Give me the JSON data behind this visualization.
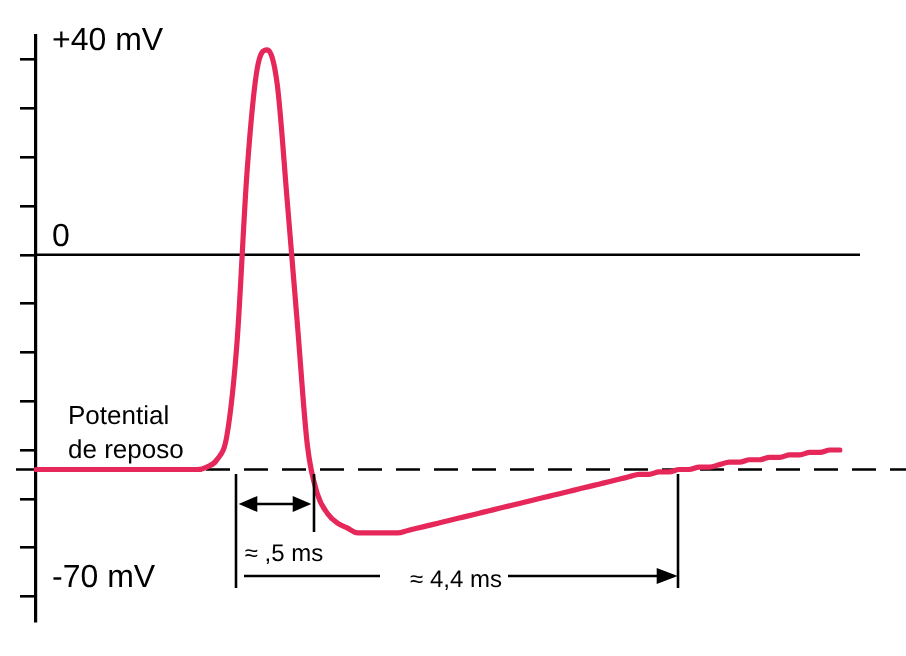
{
  "chart_data": {
    "type": "line",
    "categories": [
      null,
      null,
      null,
      null,
      null,
      null,
      null,
      null,
      null,
      null,
      null,
      null,
      null,
      null,
      null,
      null,
      null,
      null,
      null,
      null,
      null,
      null,
      null,
      null,
      null,
      null,
      null,
      null,
      null,
      null,
      null,
      null,
      null,
      null,
      null,
      null,
      null,
      null,
      null,
      null,
      null,
      null,
      null,
      null,
      null,
      null,
      null,
      null,
      null,
      null,
      null,
      null,
      null,
      null,
      null,
      null,
      null,
      null,
      null,
      null,
      null,
      null,
      null,
      null,
      null,
      null,
      null,
      null,
      null,
      null,
      null,
      null,
      null,
      null,
      null,
      null,
      null,
      null,
      null,
      null,
      null
    ],
    "series": [
      {
        "color": "#e6275a",
        "values": [
          -44,
          -44,
          -44,
          -44,
          -44,
          -44,
          -44,
          -44,
          -44,
          -44,
          -44,
          -44,
          -44,
          -44,
          -44,
          -44,
          -44,
          -43.5,
          -42,
          -37,
          -18,
          17,
          38,
          42,
          35,
          11,
          -14,
          -39,
          -49,
          -53,
          -55,
          -56,
          -57,
          -57,
          -57,
          -57,
          -57,
          -56.5,
          -56,
          -55.5,
          -55,
          -54.5,
          -54,
          -53.5,
          -53,
          -52.5,
          -52,
          -51.5,
          -51,
          -50.5,
          -50,
          -49.5,
          -49,
          -48.5,
          -48,
          -47.5,
          -47,
          -46.5,
          -46,
          -45.5,
          -45,
          -45,
          -44.5,
          -44.5,
          -44,
          -44,
          -43.5,
          -43.5,
          -43,
          -42.5,
          -42.5,
          -42,
          -42,
          -41.5,
          -41.5,
          -41,
          -41,
          -40.5,
          -40.5,
          -40,
          -40
        ]
      }
    ],
    "ylim": [
      -75,
      45
    ],
    "yticks": [
      {
        "value": -70,
        "label": "-70 mV"
      },
      {
        "value": -60,
        "label": null
      },
      {
        "value": -50,
        "label": null
      },
      {
        "value": -40,
        "label": null
      },
      {
        "value": -30,
        "label": null
      },
      {
        "value": -20,
        "label": null
      },
      {
        "value": -10,
        "label": null
      },
      {
        "value": 0,
        "label": "0"
      },
      {
        "value": 10,
        "label": null
      },
      {
        "value": 20,
        "label": null
      },
      {
        "value": 30,
        "label": null
      },
      {
        "value": 40,
        "label": "+40 mV"
      }
    ],
    "tick_labels": "y",
    "marker": "none",
    "line_style": "solid",
    "ref_lines": [
      {
        "axis": "y",
        "value": 0,
        "label": null,
        "color": "#000000",
        "line_style": "solid"
      },
      {
        "axis": "y",
        "value": -44,
        "label": "Potential de reposo",
        "color": "#000000",
        "line_style": "dashed"
      }
    ],
    "annotations": [
      "≈ ,5 ms",
      "≈ 4,4 ms"
    ]
  }
}
